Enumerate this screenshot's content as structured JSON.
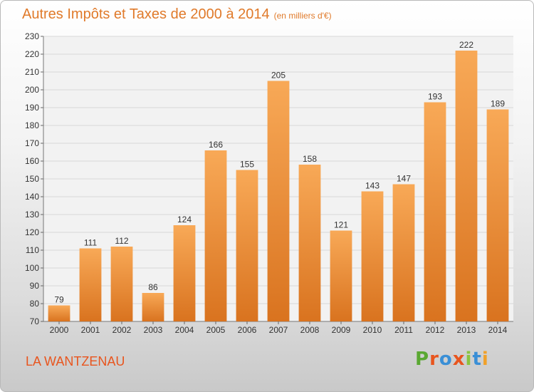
{
  "title": "Autres Impôts et Taxes de 2000 à 2014",
  "unit": "(en milliers d'€)",
  "commune": "LA WANTZENAU",
  "logo": {
    "text": "Proxiti",
    "letter_colors": [
      "#5aa832",
      "#e8551e",
      "#3a8fd6",
      "#e8551e",
      "#8ac43f",
      "#3a8fd6",
      "#f0a12a"
    ]
  },
  "colors": {
    "bar_top": "#f8a957",
    "bar_bottom": "#d9731f",
    "text": "#333333",
    "grid": "#d8d8d8"
  },
  "chart_data": {
    "type": "bar",
    "categories": [
      "2000",
      "2001",
      "2002",
      "2003",
      "2004",
      "2005",
      "2006",
      "2007",
      "2008",
      "2009",
      "2010",
      "2011",
      "2012",
      "2013",
      "2014"
    ],
    "values": [
      79,
      111,
      112,
      86,
      124,
      166,
      155,
      205,
      158,
      121,
      143,
      147,
      193,
      222,
      189
    ],
    "ylim": [
      70,
      230
    ],
    "yticks": [
      70,
      80,
      90,
      100,
      110,
      120,
      130,
      140,
      150,
      160,
      170,
      180,
      190,
      200,
      210,
      220,
      230
    ],
    "grid": true,
    "data_labels": true
  }
}
